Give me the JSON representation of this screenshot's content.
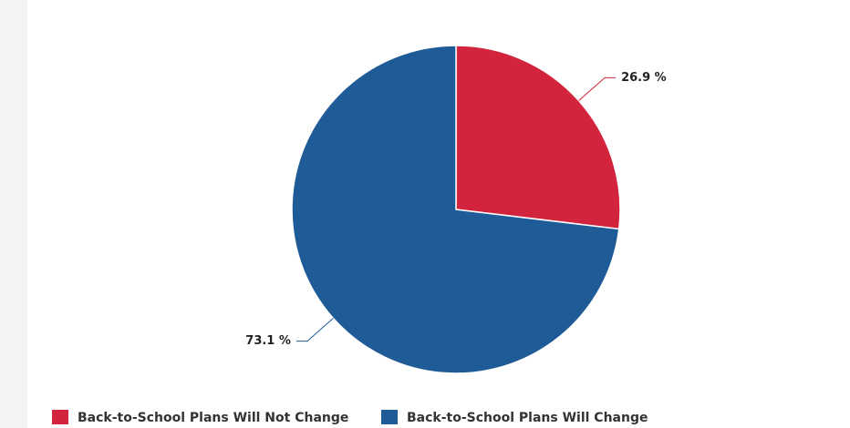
{
  "chart_data": {
    "type": "pie",
    "categories": [
      "Back-to-School Plans Will Not Change",
      "Back-to-School Plans Will Change"
    ],
    "values": [
      26.9,
      73.1
    ],
    "value_labels": [
      "26.9 %",
      "73.1 %"
    ],
    "colors": [
      "#d2243d",
      "#1f5b96"
    ],
    "legend": "bottom"
  }
}
